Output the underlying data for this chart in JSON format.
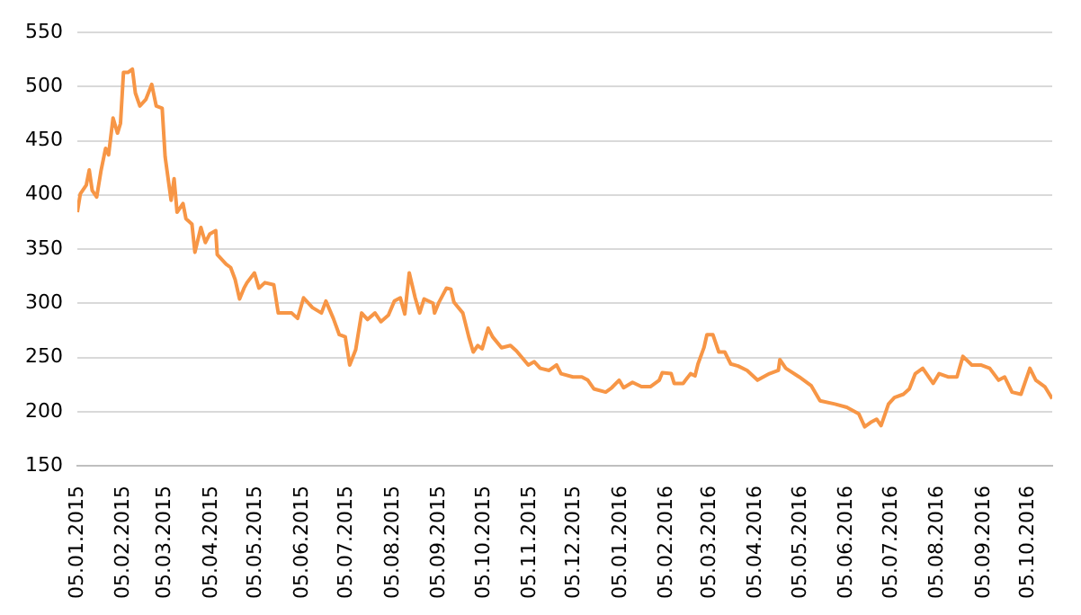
{
  "chart_data": {
    "type": "line",
    "x": [
      "2015-01-05",
      "2015-01-07",
      "2015-01-11",
      "2015-01-13",
      "2015-01-15",
      "2015-01-18",
      "2015-01-21",
      "2015-01-24",
      "2015-01-26",
      "2015-01-29",
      "2015-02-01",
      "2015-02-03",
      "2015-02-05",
      "2015-02-08",
      "2015-02-11",
      "2015-02-13",
      "2015-02-16",
      "2015-02-20",
      "2015-02-24",
      "2015-02-27",
      "2015-03-03",
      "2015-03-05",
      "2015-03-09",
      "2015-03-11",
      "2015-03-13",
      "2015-03-17",
      "2015-03-19",
      "2015-03-23",
      "2015-03-25",
      "2015-03-29",
      "2015-04-01",
      "2015-04-04",
      "2015-04-08",
      "2015-04-09",
      "2015-04-15",
      "2015-04-18",
      "2015-04-21",
      "2015-04-24",
      "2015-04-27",
      "2015-04-29",
      "2015-05-04",
      "2015-05-07",
      "2015-05-11",
      "2015-05-17",
      "2015-05-20",
      "2015-05-29",
      "2015-06-02",
      "2015-06-06",
      "2015-06-12",
      "2015-06-18",
      "2015-06-21",
      "2015-06-26",
      "2015-06-30",
      "2015-07-04",
      "2015-07-07",
      "2015-07-11",
      "2015-07-15",
      "2015-07-19",
      "2015-07-24",
      "2015-07-28",
      "2015-08-02",
      "2015-08-06",
      "2015-08-10",
      "2015-08-13",
      "2015-08-16",
      "2015-08-20",
      "2015-08-23",
      "2015-08-26",
      "2015-09-01",
      "2015-09-02",
      "2015-09-05",
      "2015-09-10",
      "2015-09-13",
      "2015-09-15",
      "2015-09-21",
      "2015-09-25",
      "2015-09-28",
      "2015-10-01",
      "2015-10-04",
      "2015-10-08",
      "2015-10-11",
      "2015-10-17",
      "2015-10-23",
      "2015-10-27",
      "2015-11-04",
      "2015-11-08",
      "2015-11-12",
      "2015-11-18",
      "2015-11-23",
      "2015-11-26",
      "2015-12-04",
      "2015-12-10",
      "2015-12-14",
      "2015-12-18",
      "2015-12-26",
      "2015-12-30",
      "2016-01-04",
      "2016-01-07",
      "2016-01-13",
      "2016-01-19",
      "2016-01-25",
      "2016-01-31",
      "2016-02-02",
      "2016-02-08",
      "2016-02-10",
      "2016-02-16",
      "2016-02-21",
      "2016-02-24",
      "2016-02-26",
      "2016-03-01",
      "2016-03-03",
      "2016-03-07",
      "2016-03-11",
      "2016-03-15",
      "2016-03-19",
      "2016-03-24",
      "2016-03-30",
      "2016-04-06",
      "2016-04-14",
      "2016-04-20",
      "2016-04-21",
      "2016-04-25",
      "2016-05-04",
      "2016-05-12",
      "2016-05-18",
      "2016-05-28",
      "2016-06-05",
      "2016-06-13",
      "2016-06-17",
      "2016-06-21",
      "2016-06-25",
      "2016-06-28",
      "2016-07-03",
      "2016-07-07",
      "2016-07-13",
      "2016-07-17",
      "2016-07-21",
      "2016-07-26",
      "2016-08-02",
      "2016-08-06",
      "2016-08-12",
      "2016-08-18",
      "2016-08-22",
      "2016-08-28",
      "2016-09-03",
      "2016-09-09",
      "2016-09-15",
      "2016-09-19",
      "2016-09-24",
      "2016-09-30",
      "2016-10-06",
      "2016-10-10",
      "2016-10-16",
      "2016-10-21"
    ],
    "series": [
      {
        "color": "#f79646",
        "values": [
          384,
          401,
          409,
          423,
          404,
          398,
          423,
          443,
          437,
          471,
          457,
          466,
          513,
          513,
          516,
          494,
          482,
          488,
          502,
          482,
          480,
          435,
          395,
          415,
          384,
          392,
          378,
          373,
          347,
          370,
          356,
          364,
          367,
          345,
          336,
          333,
          322,
          304,
          314,
          319,
          328,
          314,
          319,
          317,
          291,
          291,
          286,
          305,
          296,
          291,
          302,
          286,
          271,
          269,
          243,
          257,
          291,
          285,
          291,
          283,
          289,
          302,
          305,
          290,
          328,
          305,
          291,
          304,
          300,
          291,
          301,
          314,
          313,
          301,
          291,
          269,
          255,
          261,
          258,
          277,
          269,
          259,
          261,
          256,
          243,
          246,
          240,
          238,
          243,
          235,
          232,
          232,
          229,
          221,
          218,
          222,
          229,
          222,
          227,
          223,
          223,
          229,
          236,
          235,
          226,
          226,
          235,
          233,
          244,
          259,
          271,
          271,
          255,
          255,
          244,
          242,
          238,
          229,
          235,
          238,
          248,
          240,
          232,
          224,
          210,
          207,
          204,
          198,
          186,
          190,
          193,
          187,
          207,
          213,
          216,
          221,
          235,
          240,
          226,
          235,
          232,
          232,
          251,
          243,
          243,
          240,
          229,
          232,
          218,
          216,
          240,
          229,
          223,
          212
        ]
      }
    ],
    "xlim": [
      "2015-01-05",
      "2016-10-21"
    ],
    "xticks": [
      {
        "value": "2015-01-05",
        "label": "05.01.2015"
      },
      {
        "value": "2015-02-05",
        "label": "05.02.2015"
      },
      {
        "value": "2015-03-05",
        "label": "05.03.2015"
      },
      {
        "value": "2015-04-05",
        "label": "05.04.2015"
      },
      {
        "value": "2015-05-05",
        "label": "05.05.2015"
      },
      {
        "value": "2015-06-05",
        "label": "05.06.2015"
      },
      {
        "value": "2015-07-05",
        "label": "05.07.2015"
      },
      {
        "value": "2015-08-05",
        "label": "05.08.2015"
      },
      {
        "value": "2015-09-05",
        "label": "05.09.2015"
      },
      {
        "value": "2015-10-05",
        "label": "05.10.2015"
      },
      {
        "value": "2015-11-05",
        "label": "05.11.2015"
      },
      {
        "value": "2015-12-05",
        "label": "05.12.2015"
      },
      {
        "value": "2016-01-05",
        "label": "05.01.2016"
      },
      {
        "value": "2016-02-05",
        "label": "05.02.2016"
      },
      {
        "value": "2016-03-05",
        "label": "05.03.2016"
      },
      {
        "value": "2016-04-05",
        "label": "05.04.2016"
      },
      {
        "value": "2016-05-05",
        "label": "05.05.2016"
      },
      {
        "value": "2016-06-05",
        "label": "05.06.2016"
      },
      {
        "value": "2016-07-05",
        "label": "05.07.2016"
      },
      {
        "value": "2016-08-05",
        "label": "05.08.2016"
      },
      {
        "value": "2016-09-05",
        "label": "05.09.2016"
      },
      {
        "value": "2016-10-05",
        "label": "05.10.2016"
      }
    ],
    "ylim": [
      150,
      550
    ],
    "yticks": [
      150,
      200,
      250,
      300,
      350,
      400,
      450,
      500,
      550
    ],
    "grid": "y",
    "legend": false,
    "marker": "none",
    "line_style": "solid"
  }
}
